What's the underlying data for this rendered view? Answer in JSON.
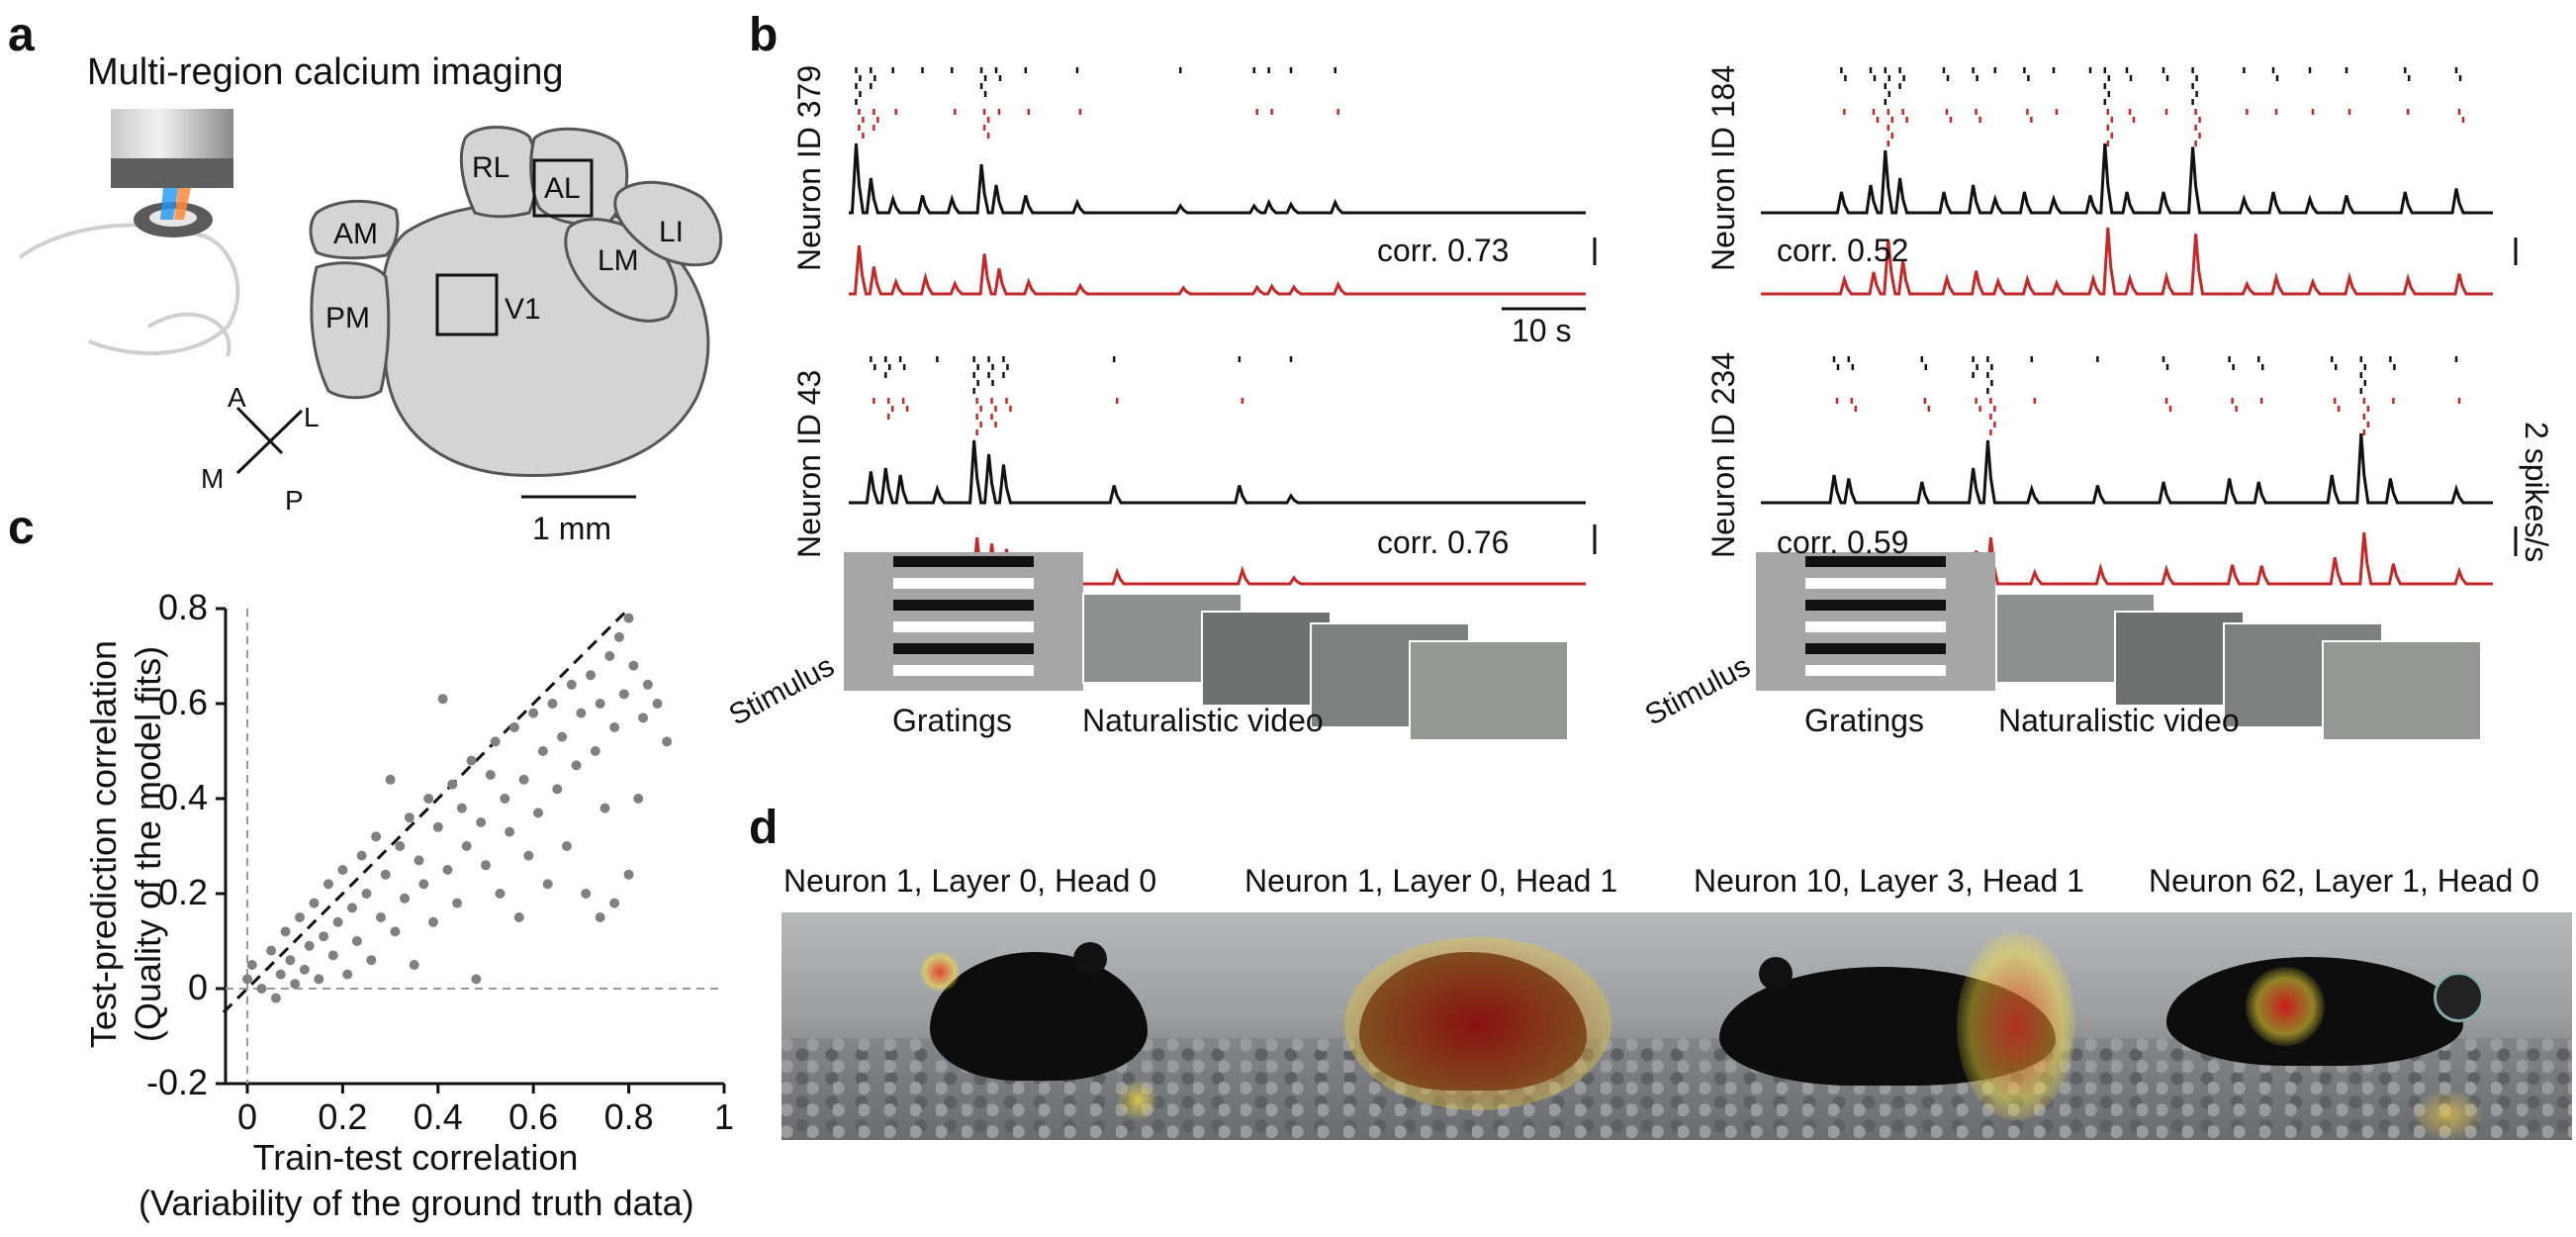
{
  "panel_labels": {
    "a": "a",
    "b": "b",
    "c": "c",
    "d": "d"
  },
  "panel_a": {
    "title": "Multi-region calcium imaging",
    "regions": [
      "RL",
      "AL",
      "AM",
      "LI",
      "LM",
      "PM",
      "V1"
    ],
    "compass": {
      "a": "A",
      "l": "L",
      "m": "M",
      "p": "P"
    },
    "scalebar": "1 mm"
  },
  "panel_b": {
    "neurons": [
      {
        "id_label": "Neuron ID 379",
        "corr": "corr. 0.73"
      },
      {
        "id_label": "Neuron ID 184",
        "corr": "corr. 0.52"
      },
      {
        "id_label": "Neuron ID 43",
        "corr": "corr. 0.76"
      },
      {
        "id_label": "Neuron ID 234",
        "corr": "corr. 0.59"
      }
    ],
    "time_scale": "10 s",
    "rate_scale": "2 spikes/s",
    "stimulus_label": "Stimulus",
    "gratings_label": "Gratings",
    "video_label": "Naturalistic video",
    "colors": {
      "ground_truth": "#111111",
      "prediction": "#c62828"
    }
  },
  "chart_data": {
    "type": "scatter",
    "xlabel_1": "Train-test correlation",
    "xlabel_2": "(Variability of the ground truth data)",
    "ylabel_1": "Test-prediction correlation",
    "ylabel_2": "(Quality of the model fits)",
    "xlim": [
      -0.05,
      1.0
    ],
    "ylim": [
      -0.2,
      0.8
    ],
    "xticks": [
      0,
      0.2,
      0.4,
      0.6,
      0.8,
      1
    ],
    "xtick_labels": [
      "0",
      "0.2",
      "0.4",
      "0.6",
      "0.8",
      "1"
    ],
    "yticks": [
      -0.2,
      0,
      0.2,
      0.4,
      0.6,
      0.8
    ],
    "ytick_labels": [
      "-0.2",
      "0",
      "0.2",
      "0.4",
      "0.6",
      "0.8"
    ],
    "identity_line": true,
    "point_color": "#808080",
    "points": [
      [
        0.0,
        0.02
      ],
      [
        0.01,
        0.05
      ],
      [
        0.03,
        0.0
      ],
      [
        0.05,
        0.08
      ],
      [
        0.06,
        -0.02
      ],
      [
        0.07,
        0.03
      ],
      [
        0.08,
        0.12
      ],
      [
        0.09,
        0.06
      ],
      [
        0.1,
        0.01
      ],
      [
        0.11,
        0.15
      ],
      [
        0.12,
        0.04
      ],
      [
        0.13,
        0.09
      ],
      [
        0.14,
        0.18
      ],
      [
        0.15,
        0.02
      ],
      [
        0.16,
        0.11
      ],
      [
        0.17,
        0.22
      ],
      [
        0.18,
        0.07
      ],
      [
        0.19,
        0.14
      ],
      [
        0.2,
        0.25
      ],
      [
        0.21,
        0.03
      ],
      [
        0.22,
        0.17
      ],
      [
        0.23,
        0.1
      ],
      [
        0.24,
        0.28
      ],
      [
        0.25,
        0.2
      ],
      [
        0.26,
        0.06
      ],
      [
        0.27,
        0.32
      ],
      [
        0.28,
        0.15
      ],
      [
        0.29,
        0.24
      ],
      [
        0.3,
        0.44
      ],
      [
        0.31,
        0.12
      ],
      [
        0.32,
        0.3
      ],
      [
        0.33,
        0.19
      ],
      [
        0.34,
        0.36
      ],
      [
        0.35,
        0.05
      ],
      [
        0.36,
        0.27
      ],
      [
        0.37,
        0.22
      ],
      [
        0.38,
        0.4
      ],
      [
        0.39,
        0.14
      ],
      [
        0.4,
        0.34
      ],
      [
        0.41,
        0.61
      ],
      [
        0.42,
        0.25
      ],
      [
        0.43,
        0.43
      ],
      [
        0.44,
        0.18
      ],
      [
        0.45,
        0.38
      ],
      [
        0.46,
        0.3
      ],
      [
        0.47,
        0.48
      ],
      [
        0.48,
        0.02
      ],
      [
        0.49,
        0.35
      ],
      [
        0.5,
        0.26
      ],
      [
        0.51,
        0.45
      ],
      [
        0.52,
        0.52
      ],
      [
        0.53,
        0.2
      ],
      [
        0.54,
        0.4
      ],
      [
        0.55,
        0.33
      ],
      [
        0.56,
        0.55
      ],
      [
        0.57,
        0.15
      ],
      [
        0.58,
        0.44
      ],
      [
        0.59,
        0.28
      ],
      [
        0.6,
        0.58
      ],
      [
        0.61,
        0.37
      ],
      [
        0.62,
        0.5
      ],
      [
        0.63,
        0.22
      ],
      [
        0.64,
        0.6
      ],
      [
        0.65,
        0.42
      ],
      [
        0.66,
        0.53
      ],
      [
        0.67,
        0.3
      ],
      [
        0.68,
        0.64
      ],
      [
        0.69,
        0.47
      ],
      [
        0.7,
        0.58
      ],
      [
        0.71,
        0.2
      ],
      [
        0.72,
        0.66
      ],
      [
        0.73,
        0.5
      ],
      [
        0.74,
        0.6
      ],
      [
        0.75,
        0.38
      ],
      [
        0.76,
        0.7
      ],
      [
        0.77,
        0.55
      ],
      [
        0.78,
        0.74
      ],
      [
        0.79,
        0.62
      ],
      [
        0.8,
        0.78
      ],
      [
        0.81,
        0.68
      ],
      [
        0.82,
        0.4
      ],
      [
        0.83,
        0.57
      ],
      [
        0.84,
        0.64
      ],
      [
        0.86,
        0.6
      ],
      [
        0.88,
        0.52
      ],
      [
        0.77,
        0.18
      ],
      [
        0.8,
        0.24
      ],
      [
        0.74,
        0.15
      ]
    ]
  },
  "panel_d": {
    "titles": [
      "Neuron 1, Layer 0, Head 0",
      "Neuron 1, Layer 0, Head 1",
      "Neuron 10, Layer 3, Head 1",
      "Neuron 62, Layer 1, Head 0"
    ]
  }
}
